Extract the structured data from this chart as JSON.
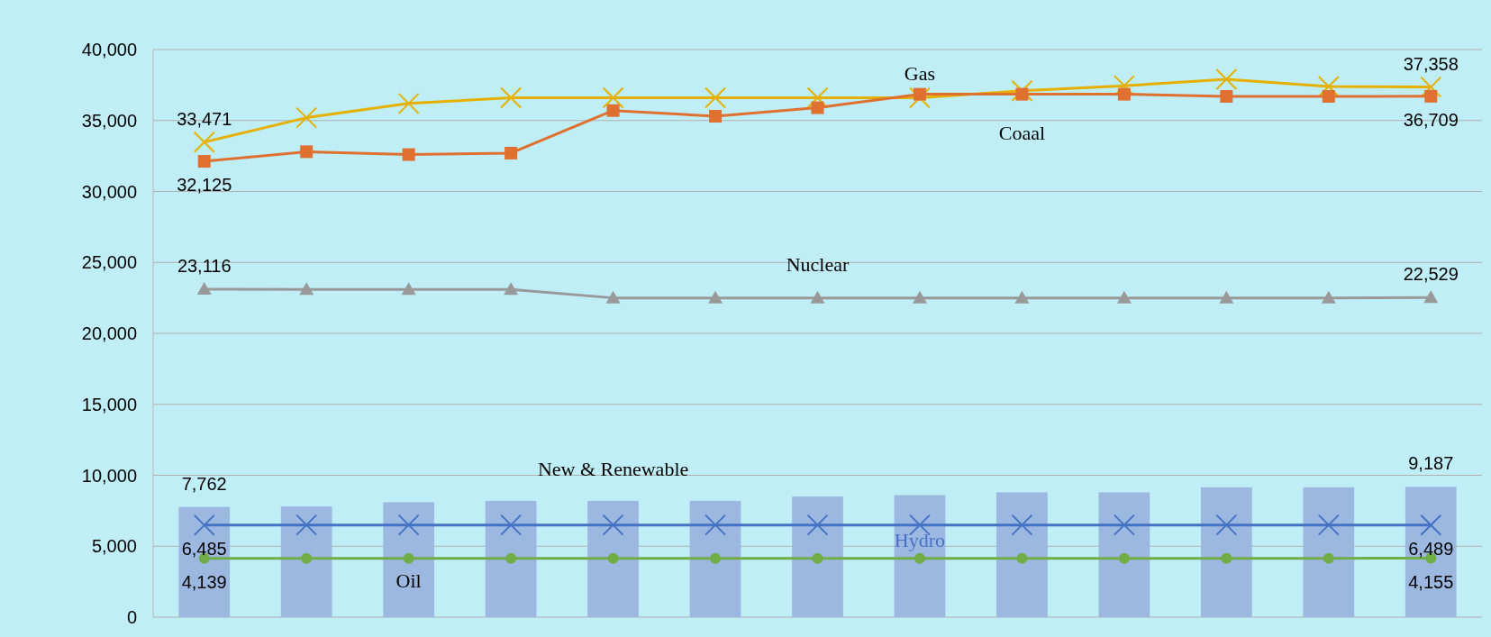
{
  "chart_data": {
    "type": "line",
    "categories": [
      null,
      null,
      null,
      null,
      null,
      null,
      null,
      null,
      null,
      null,
      null,
      null,
      null
    ],
    "ylim": [
      0,
      40000
    ],
    "yticks": [
      {
        "value": 0,
        "label": "0"
      },
      {
        "value": 5000,
        "label": "5,000"
      },
      {
        "value": 10000,
        "label": "10,000"
      },
      {
        "value": 15000,
        "label": "15,000"
      },
      {
        "value": 20000,
        "label": "20,000"
      },
      {
        "value": 25000,
        "label": "25,000"
      },
      {
        "value": 30000,
        "label": "30,000"
      },
      {
        "value": 35000,
        "label": "35,000"
      },
      {
        "value": 40000,
        "label": "40,000"
      }
    ],
    "grid": "y",
    "legend": false,
    "line_style": "solid",
    "series": [
      {
        "name": "New & Renewable",
        "type": "bar",
        "color": "#9db8e0",
        "values": [
          7762,
          7800,
          8100,
          8200,
          8200,
          8200,
          8500,
          8600,
          8800,
          8800,
          9150,
          9150,
          9187
        ],
        "value_labels": [
          "7,762",
          null,
          null,
          null,
          null,
          null,
          null,
          null,
          null,
          null,
          null,
          null,
          "9,187"
        ]
      },
      {
        "name": "Gas",
        "color": "#e6b000",
        "marker": "cross",
        "values": [
          33471,
          35200,
          36200,
          36600,
          36600,
          36600,
          36600,
          36600,
          37100,
          37450,
          37900,
          37400,
          37358
        ],
        "value_labels": [
          "33,471",
          null,
          null,
          null,
          null,
          null,
          null,
          null,
          null,
          null,
          null,
          null,
          "37,358"
        ]
      },
      {
        "name": "Coaal",
        "color": "#e07030",
        "marker": "square",
        "values": [
          32125,
          32800,
          32600,
          32700,
          35700,
          35300,
          35900,
          36850,
          36850,
          36850,
          36700,
          36700,
          36709
        ],
        "value_labels": [
          "32,125",
          null,
          null,
          null,
          null,
          null,
          null,
          null,
          null,
          null,
          null,
          null,
          "36,709"
        ]
      },
      {
        "name": "Nuclear",
        "color": "#999999",
        "marker": "triangle",
        "values": [
          23116,
          23100,
          23100,
          23100,
          22500,
          22500,
          22500,
          22500,
          22500,
          22500,
          22500,
          22500,
          22529
        ],
        "value_labels": [
          "23,116",
          null,
          null,
          null,
          null,
          null,
          null,
          null,
          null,
          null,
          null,
          null,
          "22,529"
        ]
      },
      {
        "name": "Hydro",
        "color": "#4472c4",
        "marker": "cross",
        "values": [
          6485,
          6500,
          6500,
          6500,
          6500,
          6500,
          6500,
          6500,
          6500,
          6500,
          6500,
          6500,
          6489
        ],
        "value_labels": [
          "6,485",
          null,
          null,
          null,
          null,
          null,
          null,
          null,
          null,
          null,
          null,
          null,
          "6,489"
        ]
      },
      {
        "name": "Oil",
        "color": "#70ad47",
        "marker": "circle",
        "values": [
          4139,
          4150,
          4150,
          4150,
          4150,
          4150,
          4150,
          4150,
          4150,
          4150,
          4150,
          4150,
          4155
        ],
        "value_labels": [
          "4,139",
          null,
          null,
          null,
          null,
          null,
          null,
          null,
          null,
          null,
          null,
          null,
          "4,155"
        ]
      }
    ]
  }
}
